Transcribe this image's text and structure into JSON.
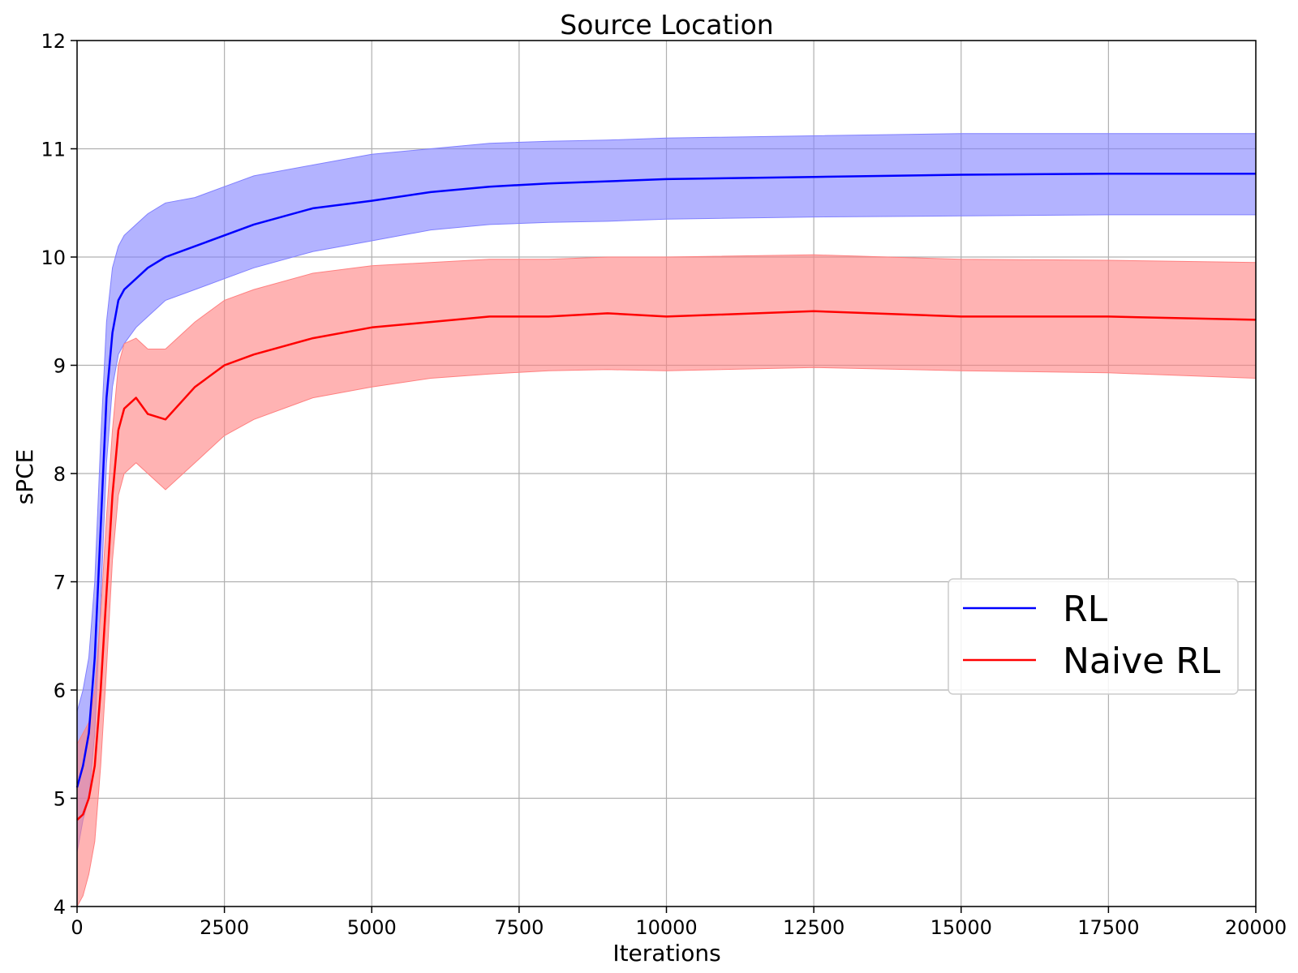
{
  "chart_data": {
    "type": "line",
    "title": "Source Location",
    "xlabel": "Iterations",
    "ylabel": "sPCE",
    "xlim": [
      0,
      20000
    ],
    "ylim": [
      4,
      12
    ],
    "xticks": [
      "0",
      "2500",
      "5000",
      "7500",
      "10000",
      "12500",
      "15000",
      "17500",
      "20000"
    ],
    "yticks": [
      "4",
      "5",
      "6",
      "7",
      "8",
      "9",
      "10",
      "11",
      "12"
    ],
    "grid": true,
    "legend_position": "center-right",
    "x": [
      0,
      100,
      200,
      300,
      400,
      500,
      600,
      700,
      800,
      1000,
      1200,
      1500,
      2000,
      2500,
      3000,
      4000,
      5000,
      6000,
      7000,
      8000,
      9000,
      10000,
      12500,
      15000,
      17500,
      20000
    ],
    "series": [
      {
        "name": "RL",
        "color": "#0000ff",
        "band_color": "#8080ff",
        "values": [
          5.1,
          5.3,
          5.6,
          6.3,
          7.5,
          8.7,
          9.3,
          9.6,
          9.7,
          9.8,
          9.9,
          10.0,
          10.1,
          10.2,
          10.3,
          10.45,
          10.52,
          10.6,
          10.65,
          10.68,
          10.7,
          10.72,
          10.74,
          10.76,
          10.77,
          10.77
        ],
        "lower": [
          4.5,
          4.8,
          5.0,
          5.6,
          6.8,
          8.1,
          8.8,
          9.1,
          9.2,
          9.35,
          9.45,
          9.6,
          9.7,
          9.8,
          9.9,
          10.05,
          10.15,
          10.25,
          10.3,
          10.32,
          10.33,
          10.35,
          10.37,
          10.38,
          10.39,
          10.39
        ],
        "upper": [
          5.8,
          6.0,
          6.3,
          7.0,
          8.3,
          9.4,
          9.9,
          10.1,
          10.2,
          10.3,
          10.4,
          10.5,
          10.55,
          10.65,
          10.75,
          10.85,
          10.95,
          11.0,
          11.05,
          11.07,
          11.08,
          11.1,
          11.12,
          11.14,
          11.14,
          11.14
        ]
      },
      {
        "name": "Naive RL",
        "color": "#ff0000",
        "band_color": "#ff8080",
        "values": [
          4.8,
          4.85,
          5.0,
          5.3,
          6.0,
          6.9,
          7.8,
          8.4,
          8.6,
          8.7,
          8.55,
          8.5,
          8.8,
          9.0,
          9.1,
          9.25,
          9.35,
          9.4,
          9.45,
          9.45,
          9.48,
          9.45,
          9.5,
          9.45,
          9.45,
          9.42
        ],
        "lower": [
          4.0,
          4.1,
          4.3,
          4.6,
          5.3,
          6.2,
          7.2,
          7.8,
          8.0,
          8.1,
          8.0,
          7.85,
          8.1,
          8.35,
          8.5,
          8.7,
          8.8,
          8.88,
          8.92,
          8.95,
          8.96,
          8.95,
          8.98,
          8.95,
          8.93,
          8.88
        ],
        "upper": [
          5.5,
          5.6,
          5.7,
          6.0,
          6.7,
          7.6,
          8.4,
          9.0,
          9.2,
          9.25,
          9.15,
          9.15,
          9.4,
          9.6,
          9.7,
          9.85,
          9.92,
          9.95,
          9.98,
          9.98,
          10.0,
          10.0,
          10.02,
          9.98,
          9.97,
          9.95
        ]
      }
    ]
  }
}
